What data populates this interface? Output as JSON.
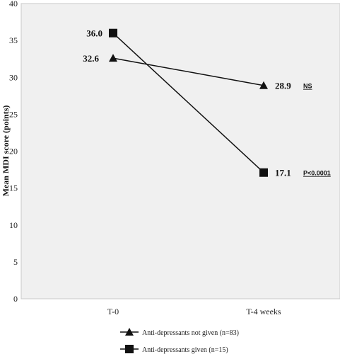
{
  "chart_data": {
    "type": "line",
    "categories": [
      "T-0",
      "T-4 weeks"
    ],
    "ylabel": "Mean MDI score (points)",
    "xlabel": "",
    "ylim": [
      0,
      40
    ],
    "yticks": [
      "0",
      "5",
      "10",
      "15",
      "20",
      "25",
      "30",
      "35",
      "40"
    ],
    "grid": false,
    "legend_position": "bottom",
    "series": [
      {
        "name": "Anti-depressants not given (n=83)",
        "marker": "triangle",
        "color": "#111111",
        "values": [
          32.6,
          28.9
        ],
        "labels": [
          "32.6",
          "28.9"
        ],
        "annotation": "NS"
      },
      {
        "name": "Anti-depressants given (n=15)",
        "marker": "square",
        "color": "#111111",
        "values": [
          36.0,
          17.1
        ],
        "labels": [
          "36.0",
          "17.1"
        ],
        "annotation": "P<0.0001"
      }
    ]
  }
}
